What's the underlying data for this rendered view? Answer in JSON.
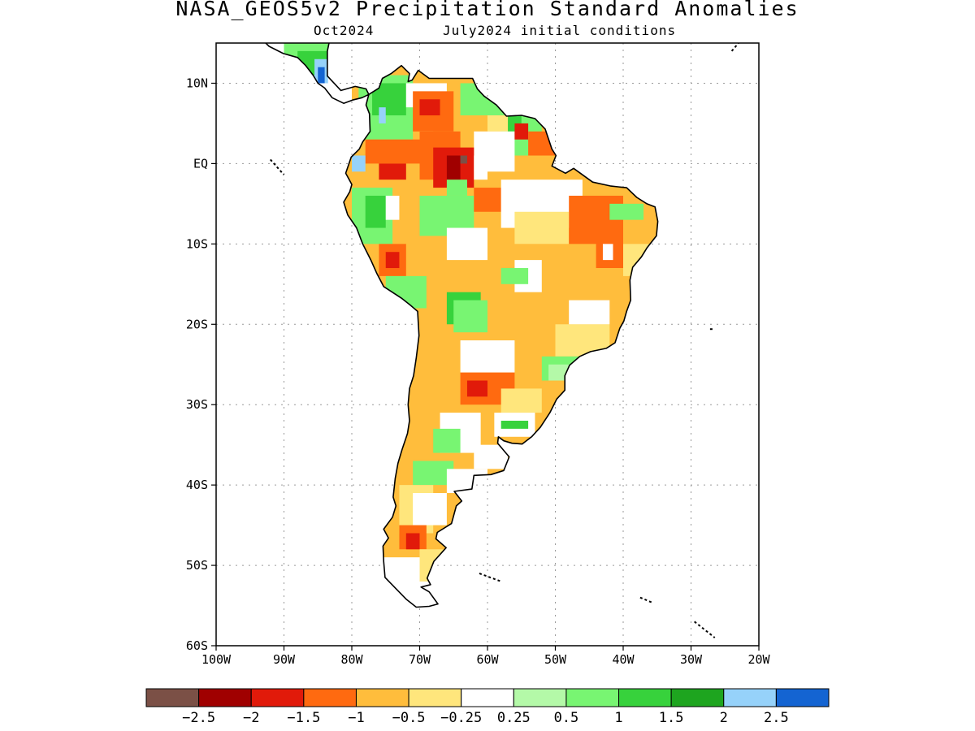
{
  "title": "NASA_GEOS5v2 Precipitation Standard Anomalies",
  "subtitle_left": "Oct2024",
  "subtitle_right": "July2024 initial conditions",
  "map": {
    "lon_range": [
      -100,
      -20
    ],
    "lat_range": [
      -60,
      15
    ],
    "lon_ticks": [
      {
        "value": -100,
        "label": "100W"
      },
      {
        "value": -90,
        "label": "90W"
      },
      {
        "value": -80,
        "label": "80W"
      },
      {
        "value": -70,
        "label": "70W"
      },
      {
        "value": -60,
        "label": "60W"
      },
      {
        "value": -50,
        "label": "50W"
      },
      {
        "value": -40,
        "label": "40W"
      },
      {
        "value": -30,
        "label": "30W"
      },
      {
        "value": -20,
        "label": "20W"
      }
    ],
    "lat_ticks": [
      {
        "value": 10,
        "label": "10N"
      },
      {
        "value": 0,
        "label": "EQ"
      },
      {
        "value": -10,
        "label": "10S"
      },
      {
        "value": -20,
        "label": "20S"
      },
      {
        "value": -30,
        "label": "30S"
      },
      {
        "value": -40,
        "label": "40S"
      },
      {
        "value": -50,
        "label": "50S"
      },
      {
        "value": -60,
        "label": "60S"
      }
    ],
    "grid": true
  },
  "colorbar": {
    "colors": [
      "#7b5046",
      "#a00000",
      "#e11a0a",
      "#ff6a10",
      "#ffbd3c",
      "#ffe67c",
      "#ffffff",
      "#b4f9a8",
      "#78f572",
      "#37d23c",
      "#1ea51f",
      "#96d2fa",
      "#1464d2"
    ],
    "labels": [
      "-2.5",
      "-2",
      "-1.5",
      "-1",
      "-0.5",
      "-0.25",
      "0.25",
      "0.5",
      "1",
      "1.5",
      "2",
      "2.5"
    ]
  }
}
